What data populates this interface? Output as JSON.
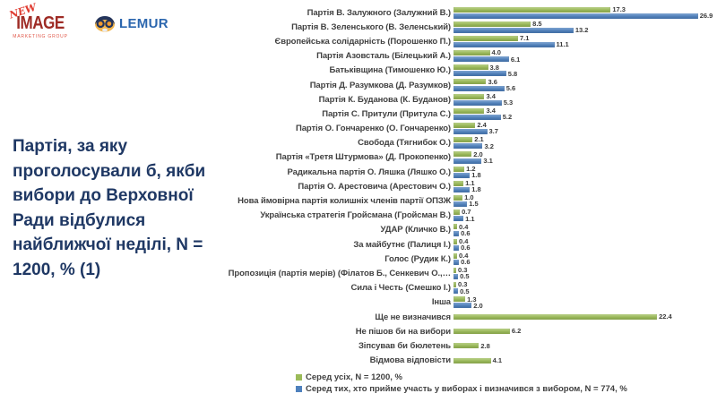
{
  "header": {
    "logo_new_image": {
      "top": "NEW",
      "main": "IMAGE",
      "sub": "MARKETING GROUP"
    },
    "logo_lemur": {
      "text": "LEMUR"
    }
  },
  "title": "Партія, за яку проголосували б, якби вибори до Верховної Ради відбулися найближчої неділі, N = 1200, % (1)",
  "colors": {
    "series_all": "#9BBB59",
    "series_voters": "#4F81BD",
    "title_text": "#1F3864",
    "label_text": "#404040",
    "lemur_blue": "#2B66AE",
    "newimage_red": "#9E2B25"
  },
  "chart_data": {
    "type": "bar",
    "orientation": "horizontal",
    "xmax": 29,
    "value_format": "one_decimal",
    "legend_position": "bottom",
    "series": [
      {
        "name": "Серед усіх, N = 1200, %",
        "color": "#9BBB59"
      },
      {
        "name": "Серед тих, хто прийме участь у виборах і визначився з вибором, N = 774, %",
        "color": "#4F81BD"
      }
    ],
    "rows": [
      {
        "label": "Партія В. Залужного (Залужний В.)",
        "all": 17.3,
        "voters": 26.9
      },
      {
        "label": "Партія В. Зеленського (В. Зеленський)",
        "all": 8.5,
        "voters": 13.2
      },
      {
        "label": "Європейська солідарність (Порошенко П.)",
        "all": 7.1,
        "voters": 11.1
      },
      {
        "label": "Партія Азовсталь (Білецький А.)",
        "all": 4.0,
        "voters": 6.1
      },
      {
        "label": "Батьківщина (Тимошенко Ю.)",
        "all": 3.8,
        "voters": 5.8
      },
      {
        "label": "Партія Д. Разумкова (Д. Разумков)",
        "all": 3.6,
        "voters": 5.6
      },
      {
        "label": "Партія К. Буданова (К. Буданов)",
        "all": 3.4,
        "voters": 5.3
      },
      {
        "label": "Партія С. Притули (Притула С.)",
        "all": 3.4,
        "voters": 5.2
      },
      {
        "label": "Партія О. Гончаренко (О. Гончаренко)",
        "all": 2.4,
        "voters": 3.7
      },
      {
        "label": "Свобода (Тягнибок О.)",
        "all": 2.1,
        "voters": 3.2
      },
      {
        "label": "Партія «Третя Штурмова» (Д. Прокопенко)",
        "all": 2.0,
        "voters": 3.1
      },
      {
        "label": "Радикальна партія О. Ляшка (Ляшко О.)",
        "all": 1.2,
        "voters": 1.8
      },
      {
        "label": "Партія О. Арестовича (Арестович О.)",
        "all": 1.1,
        "voters": 1.8
      },
      {
        "label": "Нова ймовірна партія колишніх членів партії ОПЗЖ",
        "all": 1.0,
        "voters": 1.5
      },
      {
        "label": "Українська стратегія Гройсмана (Гройсман В.)",
        "all": 0.7,
        "voters": 1.1
      },
      {
        "label": "УДАР (Кличко В.)",
        "all": 0.4,
        "voters": 0.6
      },
      {
        "label": "За майбутнє (Палиця І.)",
        "all": 0.4,
        "voters": 0.6
      },
      {
        "label": "Голос (Рудик К.)",
        "all": 0.4,
        "voters": 0.6
      },
      {
        "label": "Пропозиція (партія мерів) (Філатов Б., Сенкевич О.,…",
        "all": 0.3,
        "voters": 0.5
      },
      {
        "label": "Сила і Честь (Смешко І.)",
        "all": 0.3,
        "voters": 0.5
      },
      {
        "label": "Інша",
        "all": 1.3,
        "voters": 2.0
      },
      {
        "label": "Ще не визначився",
        "all": 22.4,
        "voters": null
      },
      {
        "label": "Не пішов би на вибори",
        "all": 6.2,
        "voters": null
      },
      {
        "label": "Зіпсував би бюлетень",
        "all": 2.8,
        "voters": null
      },
      {
        "label": "Відмова відповісти",
        "all": 4.1,
        "voters": null
      }
    ]
  }
}
